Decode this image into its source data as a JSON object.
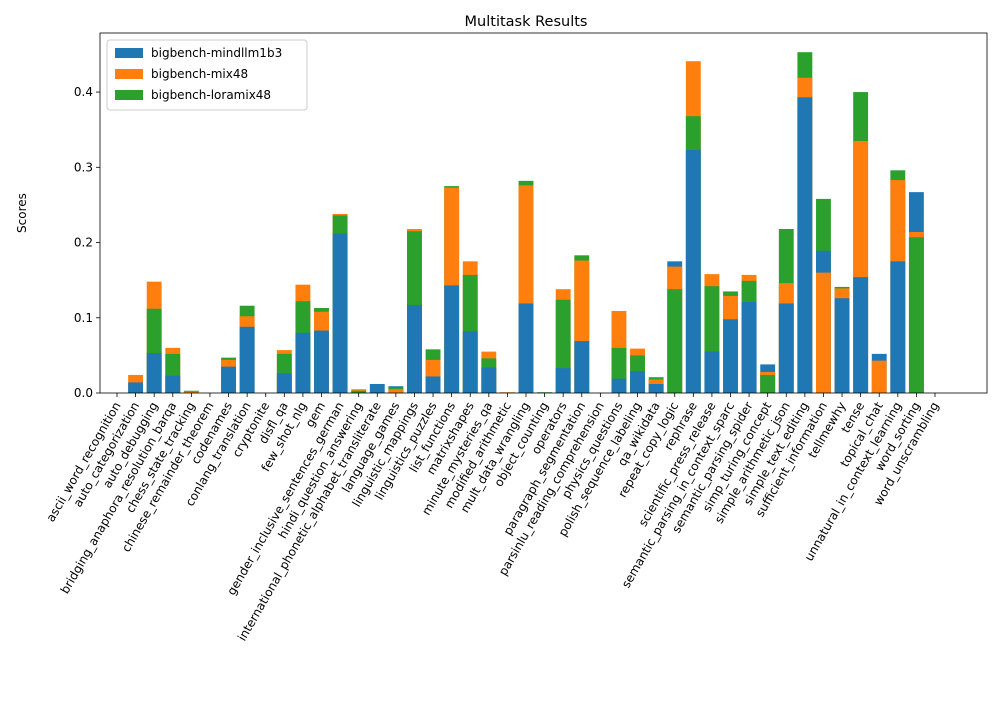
{
  "chart_data": {
    "type": "bar",
    "title": "Multitask Results",
    "ylabel": "Scores",
    "categories": [
      "ascii_word_recognition",
      "auto_categorization",
      "auto_debugging",
      "bridging_anaphora_resolution_barqa",
      "chess_state_tracking",
      "chinese_remainder_theorem",
      "codenames",
      "conlang_translation",
      "cryptonite",
      "disfl_qa",
      "few_shot_nlg",
      "gem",
      "gender_inclusive_sentences_german",
      "hindi_question_answering",
      "international_phonetic_alphabet_transliterate",
      "language_games",
      "linguistic_mappings",
      "linguistics_puzzles",
      "list_functions",
      "matrixshapes",
      "minute_mysteries_qa",
      "modified_arithmetic",
      "mult_data_wrangling",
      "object_counting",
      "operators",
      "paragraph_segmentation",
      "parsinlu_reading_comprehension",
      "physics_questions",
      "polish_sequence_labeling",
      "qa_wikidata",
      "repeat_copy_logic",
      "rephrase",
      "scientific_press_release",
      "semantic_parsing_in_context_sparc",
      "semantic_parsing_spider",
      "simp_turing_concept",
      "simple_arithmetic_json",
      "simple_text_editing",
      "sufficient_information",
      "tellmewhy",
      "tense",
      "topical_chat",
      "unnatural_in_context_learning",
      "word_sorting",
      "word_unscrambling"
    ],
    "series": [
      {
        "name": "bigbench-mindllm1b3",
        "color": "#1f77b4",
        "values": [
          0,
          0.014,
          0.053,
          0.023,
          0,
          0,
          0.035,
          0.088,
          0,
          0.026,
          0.08,
          0.083,
          0.212,
          0,
          0.012,
          0.009,
          0.117,
          0.022,
          0.143,
          0.082,
          0.034,
          0,
          0.119,
          0,
          0.033,
          0.069,
          0,
          0.019,
          0.029,
          0.012,
          0.175,
          0.323,
          0.055,
          0.098,
          0.121,
          0.038,
          0.119,
          0.393,
          0.189,
          0.126,
          0.154,
          0.052,
          0.175,
          0.267,
          0
        ]
      },
      {
        "name": "bigbench-mix48",
        "color": "#ff7f0e",
        "values": [
          0,
          0.024,
          0.148,
          0.06,
          0.002,
          0,
          0.044,
          0.102,
          0,
          0.057,
          0.144,
          0.108,
          0.238,
          0.005,
          0,
          0.005,
          0.218,
          0.044,
          0.273,
          0.175,
          0.055,
          0.001,
          0.276,
          0,
          0.138,
          0.176,
          0,
          0.109,
          0.059,
          0.018,
          0.168,
          0.441,
          0.158,
          0.129,
          0.157,
          0.028,
          0.146,
          0.419,
          0.16,
          0.139,
          0.335,
          0.043,
          0.283,
          0.214,
          0
        ]
      },
      {
        "name": "bigbench-loramix48",
        "color": "#2ca02c",
        "values": [
          0,
          0,
          0.112,
          0.052,
          0.003,
          0,
          0.047,
          0.116,
          0,
          0.052,
          0.122,
          0.113,
          0.236,
          0.003,
          0,
          0.007,
          0.215,
          0.058,
          0.275,
          0.157,
          0.046,
          0,
          0.282,
          0.001,
          0.124,
          0.183,
          0,
          0.06,
          0.05,
          0.021,
          0.138,
          0.368,
          0.142,
          0.135,
          0.149,
          0.024,
          0.218,
          0.453,
          0.258,
          0.141,
          0.4,
          0,
          0.296,
          0.207,
          0
        ]
      }
    ],
    "ylim": [
      0,
      0.4785
    ],
    "yticks": [
      {
        "value": 0,
        "label": "0.0"
      },
      {
        "value": 0.1,
        "label": "0.1"
      },
      {
        "value": 0.2,
        "label": "0.2"
      },
      {
        "value": 0.3,
        "label": "0.3"
      },
      {
        "value": 0.4,
        "label": "0.4"
      }
    ],
    "legend": "upper left",
    "overlap": "smallest in front"
  }
}
